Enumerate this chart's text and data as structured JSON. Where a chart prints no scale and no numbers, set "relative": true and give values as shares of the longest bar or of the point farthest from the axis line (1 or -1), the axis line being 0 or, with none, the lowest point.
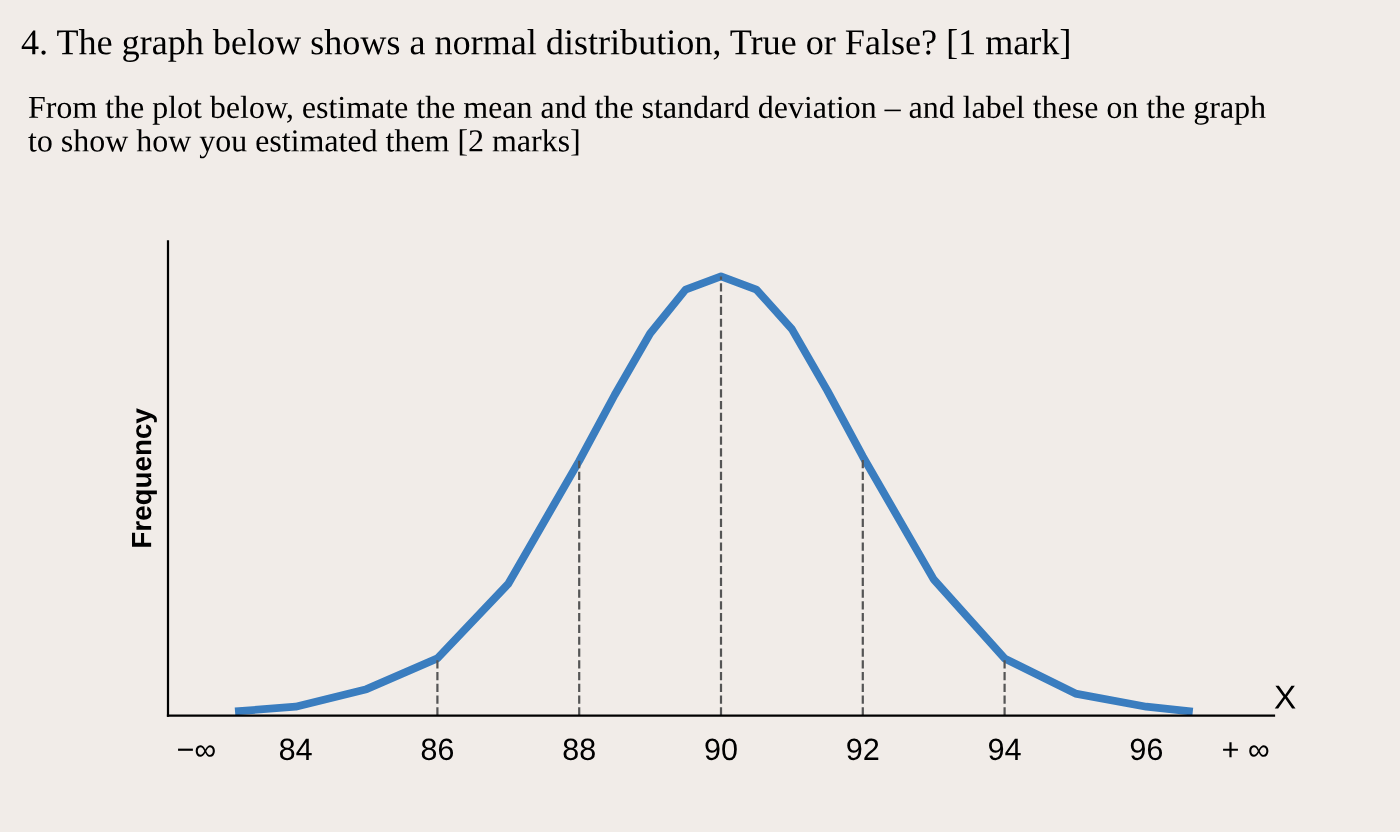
{
  "chart_data": {
    "type": "line",
    "relative": true,
    "title": "4. The graph below shows a normal distribution, True or False? [1 mark]",
    "subtitle": "From the plot below, estimate the mean and the standard deviation – and label these on the graph\nto show how you estimated them [2 marks]",
    "xlabel": "X",
    "ylabel": "Frequency",
    "xlim": [
      82.2,
      97.8
    ],
    "xticks": [
      {
        "value": 82.6,
        "label": "−∞"
      },
      84,
      86,
      88,
      90,
      92,
      94,
      96,
      {
        "value": 97.4,
        "label": "+ ∞"
      }
    ],
    "series": [
      {
        "color": "#3a7dbf",
        "x": [
          83.2,
          84,
          85,
          86,
          87,
          88,
          88.5,
          89,
          89.5,
          90,
          90.5,
          91,
          91.5,
          92,
          93,
          94,
          95,
          96,
          96.6
        ],
        "values": [
          0.01,
          0.02,
          0.06,
          0.13,
          0.3,
          0.58,
          0.73,
          0.87,
          0.97,
          1.0,
          0.97,
          0.88,
          0.74,
          0.59,
          0.31,
          0.13,
          0.05,
          0.02,
          0.01
        ]
      }
    ],
    "ref_lines": [
      {
        "axis": "x",
        "value": 86,
        "line_style": "dashed",
        "color": "#555555"
      },
      {
        "axis": "x",
        "value": 88,
        "line_style": "dashed",
        "color": "#555555"
      },
      {
        "axis": "x",
        "value": 90,
        "line_style": "dashed",
        "color": "#555555"
      },
      {
        "axis": "x",
        "value": 92,
        "line_style": "dashed",
        "color": "#555555"
      },
      {
        "axis": "x",
        "value": 94,
        "line_style": "dashed",
        "color": "#555555"
      }
    ],
    "grid": false,
    "legend": false,
    "marker": "none",
    "line_style": "solid"
  }
}
